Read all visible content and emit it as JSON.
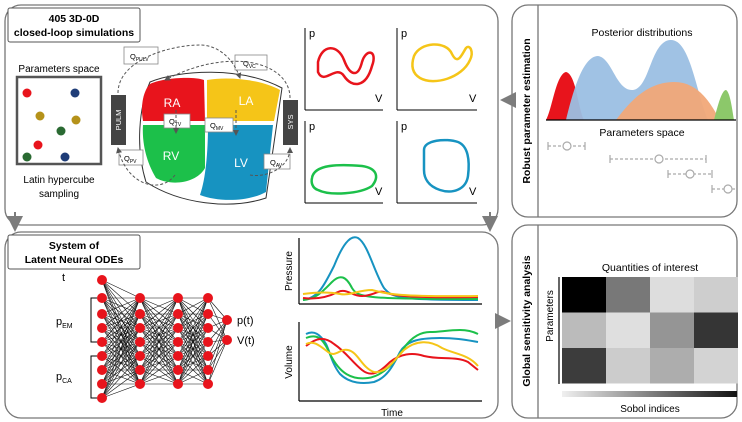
{
  "panels": {
    "simulations": {
      "title_line1": "405 3D-0D",
      "title_line2": "closed-loop simulations"
    },
    "params_space": {
      "label": "Parameters space",
      "caption_line1": "Latin hypercube",
      "caption_line2": "sampling"
    },
    "heart": {
      "chambers": {
        "ra": "RA",
        "la": "LA",
        "rv": "RV",
        "lv": "LV"
      },
      "vessels": {
        "pulm": "PULM",
        "sys": "SYS"
      },
      "flows": {
        "q_pulv": {
          "base": "Q",
          "sub": "PULV"
        },
        "q_vc": {
          "base": "Q",
          "sub": "VC"
        },
        "q_tv": {
          "base": "Q",
          "sub": "TV"
        },
        "q_mv": {
          "base": "Q",
          "sub": "MV"
        },
        "q_pv": {
          "base": "Q",
          "sub": "PV"
        },
        "q_av": {
          "base": "Q",
          "sub": "AV"
        }
      }
    },
    "pv_loops": {
      "y_label": "p",
      "x_label": "V"
    },
    "ode": {
      "title_line1": "System of",
      "title_line2": "Latent Neural ODEs",
      "inputs": {
        "t": "t",
        "p_em": {
          "base": "p",
          "sub": "EM"
        },
        "p_ca": {
          "base": "p",
          "sub": "CA"
        }
      },
      "outputs": {
        "p": "p(t)",
        "v": "V(t)"
      },
      "pressure_label": "Pressure",
      "volume_label": "Volume",
      "time_label": "Time"
    },
    "estimation": {
      "side_title": "Robust parameter estimation",
      "posterior_title": "Posterior distributions",
      "axis_label": "Parameters space"
    },
    "sensitivity": {
      "side_title": "Global sensitivity analysis",
      "qoi_label": "Quantities of interest",
      "params_label": "Parameters",
      "sobol_label": "Sobol indices",
      "matrix": [
        [
          0.0,
          0.5,
          0.92,
          0.86
        ],
        [
          0.78,
          0.93,
          0.62,
          0.22
        ],
        [
          0.25,
          0.85,
          0.72,
          0.88
        ]
      ]
    }
  },
  "colors": {
    "red": "#e8141c",
    "yellow": "#f5c518",
    "green": "#1cc04a",
    "blue": "#1793c1",
    "panel_border": "#777777",
    "arrow": "#8a8a8a"
  },
  "icons": [
    "arrow-right-icon",
    "arrow-left-icon",
    "arrow-down-icon"
  ]
}
